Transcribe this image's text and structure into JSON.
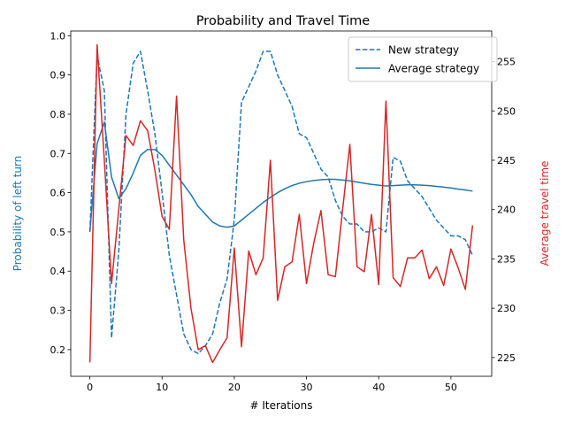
{
  "chart_data": {
    "type": "line",
    "title": "Probability and Travel Time",
    "xlabel": "# Iterations",
    "ylabel_left": "Probability of left turn",
    "ylabel_right": "Average travel time",
    "xlim": [
      -2.65,
      55.65
    ],
    "ylim_left": [
      0.132,
      1.012
    ],
    "ylim_right": [
      223.1,
      258.1
    ],
    "x_ticks": [
      0,
      10,
      20,
      30,
      40,
      50
    ],
    "y_left_ticks": [
      0.2,
      0.3,
      0.4,
      0.5,
      0.6,
      0.7,
      0.8,
      0.9,
      1.0
    ],
    "y_left_tick_labels": [
      "0.2",
      "0.3",
      "0.4",
      "0.5",
      "0.6",
      "0.7",
      "0.8",
      "0.9",
      "1.0"
    ],
    "y_right_ticks": [
      225,
      230,
      235,
      240,
      245,
      250,
      255
    ],
    "grid": false,
    "legend_position": "top-right",
    "colors": {
      "left_axis": "#1f77b4",
      "right_axis": "#d62728",
      "new_strategy": "#1f77b4",
      "average_strategy": "#1f77b4",
      "travel_time": "#d62728"
    },
    "series": [
      {
        "name": "New strategy",
        "axis": "left",
        "style": "dashed",
        "x": [
          0,
          1,
          2,
          3,
          4,
          5,
          6,
          7,
          8,
          9,
          10,
          11,
          12,
          13,
          14,
          15,
          16,
          17,
          18,
          19,
          20,
          21,
          22,
          23,
          24,
          25,
          26,
          27,
          28,
          29,
          30,
          31,
          32,
          33,
          34,
          35,
          36,
          37,
          38,
          39,
          40,
          41,
          42,
          43,
          44,
          45,
          46,
          47,
          48,
          49,
          50,
          51,
          52,
          53
        ],
        "values": [
          0.5,
          0.95,
          0.86,
          0.23,
          0.45,
          0.8,
          0.93,
          0.96,
          0.86,
          0.75,
          0.6,
          0.44,
          0.34,
          0.24,
          0.2,
          0.19,
          0.21,
          0.24,
          0.32,
          0.38,
          0.53,
          0.83,
          0.87,
          0.91,
          0.96,
          0.96,
          0.9,
          0.86,
          0.82,
          0.75,
          0.74,
          0.7,
          0.66,
          0.64,
          0.58,
          0.54,
          0.52,
          0.52,
          0.5,
          0.5,
          0.51,
          0.5,
          0.69,
          0.68,
          0.63,
          0.61,
          0.59,
          0.56,
          0.53,
          0.51,
          0.49,
          0.49,
          0.48,
          0.44
        ]
      },
      {
        "name": "Average strategy",
        "axis": "left",
        "style": "solid",
        "x": [
          0,
          1,
          2,
          3,
          4,
          5,
          6,
          7,
          8,
          9,
          10,
          11,
          12,
          13,
          14,
          15,
          16,
          17,
          18,
          19,
          20,
          21,
          22,
          23,
          24,
          25,
          26,
          27,
          28,
          29,
          30,
          31,
          32,
          33,
          34,
          35,
          36,
          37,
          38,
          39,
          40,
          41,
          42,
          43,
          44,
          45,
          46,
          47,
          48,
          49,
          50,
          51,
          52,
          53
        ],
        "values": [
          0.5,
          0.725,
          0.78,
          0.64,
          0.585,
          0.61,
          0.65,
          0.695,
          0.71,
          0.71,
          0.695,
          0.67,
          0.645,
          0.62,
          0.595,
          0.565,
          0.545,
          0.525,
          0.515,
          0.512,
          0.515,
          0.53,
          0.545,
          0.56,
          0.575,
          0.588,
          0.6,
          0.61,
          0.618,
          0.624,
          0.628,
          0.631,
          0.633,
          0.634,
          0.634,
          0.632,
          0.63,
          0.627,
          0.624,
          0.621,
          0.619,
          0.617,
          0.618,
          0.619,
          0.62,
          0.62,
          0.619,
          0.618,
          0.616,
          0.614,
          0.612,
          0.609,
          0.607,
          0.604
        ]
      },
      {
        "name": "",
        "axis": "right",
        "style": "solid",
        "x": [
          0,
          1,
          2,
          3,
          4,
          5,
          6,
          7,
          8,
          9,
          10,
          11,
          12,
          13,
          14,
          15,
          16,
          17,
          18,
          19,
          20,
          21,
          22,
          23,
          24,
          25,
          26,
          27,
          28,
          29,
          30,
          31,
          32,
          33,
          34,
          35,
          36,
          37,
          38,
          39,
          40,
          41,
          42,
          43,
          44,
          45,
          46,
          47,
          48,
          49,
          50,
          51,
          52,
          53
        ],
        "values": [
          224.5,
          256.7,
          245,
          232.5,
          240,
          247.5,
          246.5,
          249,
          248,
          244,
          239.3,
          238,
          251.5,
          236.9,
          230,
          225.8,
          226.2,
          224.5,
          225.8,
          227,
          236.1,
          226.1,
          235.8,
          233.4,
          235.1,
          245,
          230.8,
          234.2,
          234.7,
          239.5,
          232.5,
          236.6,
          239.9,
          233.4,
          233.2,
          240,
          246.6,
          234.2,
          233.7,
          239.5,
          232.4,
          251,
          233.1,
          232.2,
          235.1,
          235.1,
          235.9,
          233,
          234.2,
          232.3,
          236,
          234.1,
          231.9,
          238.4
        ]
      }
    ]
  }
}
